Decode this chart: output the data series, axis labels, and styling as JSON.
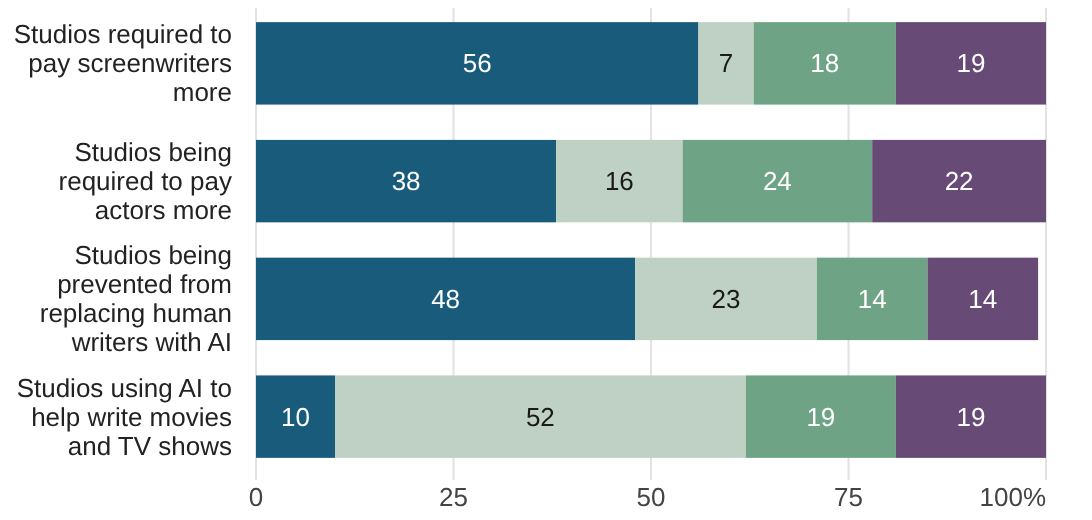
{
  "chart_data": {
    "type": "bar",
    "orientation": "horizontal",
    "stacked": true,
    "data_labels": true,
    "grid": "x",
    "categories": [
      "Studios required to pay screenwriters more",
      "Studios being required to pay actors more",
      "Studios being prevented from replacing human writers with AI",
      "Studios using AI to help write movies and TV shows"
    ],
    "series": [
      {
        "color": "#185b7a",
        "values": [
          56,
          38,
          48,
          10
        ]
      },
      {
        "color": "#bfd0c4",
        "values": [
          7,
          16,
          23,
          52
        ]
      },
      {
        "color": "#6ea385",
        "values": [
          18,
          24,
          14,
          19
        ]
      },
      {
        "color": "#684a76",
        "values": [
          19,
          22,
          14,
          19
        ]
      }
    ],
    "xlim": [
      0,
      100
    ],
    "xticks": [
      0,
      25,
      50,
      75,
      {
        "value": 100,
        "label": "100%"
      }
    ]
  }
}
